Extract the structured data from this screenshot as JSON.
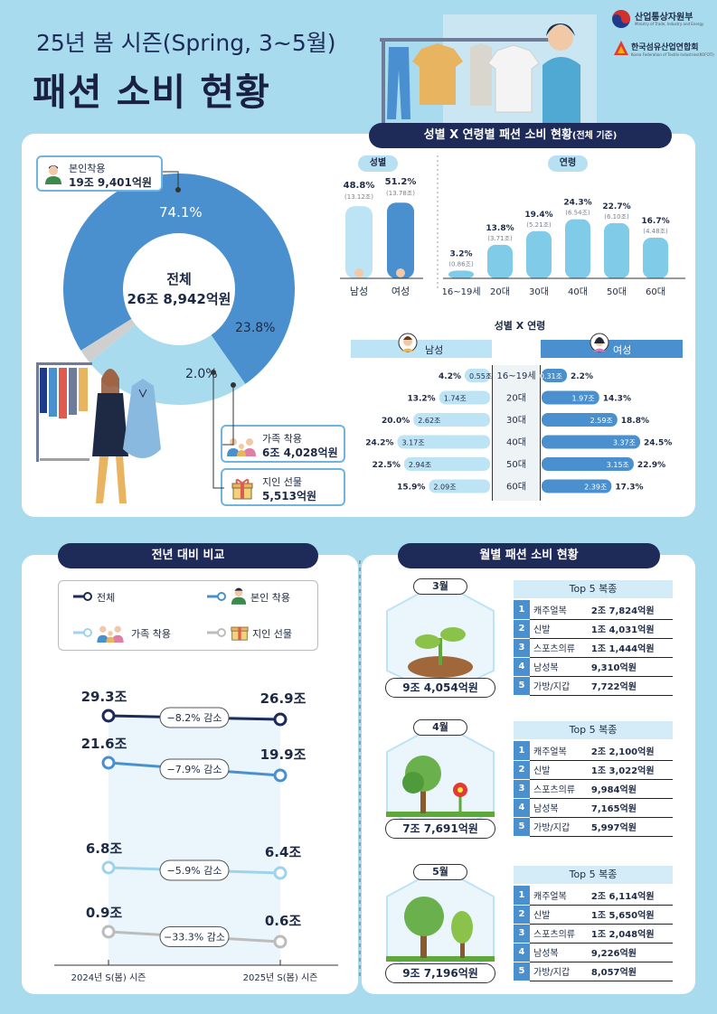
{
  "header": {
    "subtitle": "25년 봄 시즌(Spring, 3~5월)",
    "title": "패션 소비 현황",
    "logo1": "산업통상자원부",
    "logo1_en": "Ministry of Trade, Industry and Energy",
    "logo2": "한국섬유산업연합회",
    "logo2_en": "Korea Federation of Textile Industries(KOFOTI)"
  },
  "donut": {
    "center_label": "전체",
    "center_value": "26조 8,942억원",
    "self_label": "본인착용",
    "self_value": "19조 9,401억원",
    "family_label": "가족 착용",
    "family_value": "6조 4,028억원",
    "gift_label": "지인 선물",
    "gift_value": "5,513억원",
    "pct_self": "74.1%",
    "pct_family": "23.8%",
    "pct_gift": "2.0%"
  },
  "section_titles": {
    "gender_age": "성별 X 연령별 패션 소비 현황",
    "gender_age_note": "(전체 기준)",
    "gender": "성별",
    "age": "연령",
    "cross": "성별 X 연령",
    "male": "남성",
    "female": "여성",
    "yoy": "전년 대비 비교",
    "monthly": "월별 패션 소비 현황"
  },
  "gender_bars": [
    {
      "label": "남성",
      "pct": "48.8%",
      "amount": "(13.12조)",
      "value": 48.8
    },
    {
      "label": "여성",
      "pct": "51.2%",
      "amount": "(13.78조)",
      "value": 51.2
    }
  ],
  "age_bars": [
    {
      "label": "16~19세",
      "pct": "3.2%",
      "amount": "(0.86조)",
      "value": 3.2
    },
    {
      "label": "20대",
      "pct": "13.8%",
      "amount": "(3.71조)",
      "value": 13.8
    },
    {
      "label": "30대",
      "pct": "19.4%",
      "amount": "(5.21조)",
      "value": 19.4
    },
    {
      "label": "40대",
      "pct": "24.3%",
      "amount": "(6.54조)",
      "value": 24.3
    },
    {
      "label": "50대",
      "pct": "22.7%",
      "amount": "(6.10조)",
      "value": 22.7
    },
    {
      "label": "60대",
      "pct": "16.7%",
      "amount": "(4.48조)",
      "value": 16.7
    }
  ],
  "cross_rows": [
    {
      "age": "16~19세",
      "m_pct": "4.2%",
      "m_amt": "0.55조",
      "m_val": 0.55,
      "f_pct": "2.2%",
      "f_amt": "0.31조",
      "f_val": 0.31
    },
    {
      "age": "20대",
      "m_pct": "13.2%",
      "m_amt": "1.74조",
      "m_val": 1.74,
      "f_pct": "14.3%",
      "f_amt": "1.97조",
      "f_val": 1.97
    },
    {
      "age": "30대",
      "m_pct": "20.0%",
      "m_amt": "2.62조",
      "m_val": 2.62,
      "f_pct": "18.8%",
      "f_amt": "2.59조",
      "f_val": 2.59
    },
    {
      "age": "40대",
      "m_pct": "24.2%",
      "m_amt": "3.17조",
      "m_val": 3.17,
      "f_pct": "24.5%",
      "f_amt": "3.37조",
      "f_val": 3.37
    },
    {
      "age": "50대",
      "m_pct": "22.5%",
      "m_amt": "2.94조",
      "m_val": 2.94,
      "f_pct": "22.9%",
      "f_amt": "3.15조",
      "f_val": 3.15
    },
    {
      "age": "60대",
      "m_pct": "15.9%",
      "m_amt": "2.09조",
      "m_val": 2.09,
      "f_pct": "17.3%",
      "f_amt": "2.39조",
      "f_val": 2.39
    }
  ],
  "yoy": {
    "legend": [
      "전체",
      "본인 착용",
      "가족 착용",
      "지인 선물"
    ],
    "x_labels": [
      "2024년 S(봄) 시즌",
      "2025년 S(봄) 시즌"
    ],
    "series": [
      {
        "name": "전체",
        "v2024": 29.3,
        "v2025": 26.9,
        "l2024": "29.3조",
        "l2025": "26.9조",
        "change": "−8.2% 감소",
        "color": "#1e2a58"
      },
      {
        "name": "본인 착용",
        "v2024": 21.6,
        "v2025": 19.9,
        "l2024": "21.6조",
        "l2025": "19.9조",
        "change": "−7.9% 감소",
        "color": "#4a90cf"
      },
      {
        "name": "가족 착용",
        "v2024": 6.8,
        "v2025": 6.4,
        "l2024": "6.8조",
        "l2025": "6.4조",
        "change": "−5.9% 감소",
        "color": "#9fd3ec"
      },
      {
        "name": "지인 선물",
        "v2024": 0.9,
        "v2025": 0.6,
        "l2024": "0.9조",
        "l2025": "0.6조",
        "change": "−33.3% 감소",
        "color": "#bcbcbc"
      }
    ]
  },
  "months": [
    {
      "month": "3월",
      "total": "9조 4,054억원",
      "top_title": "Top 5 복종",
      "items": [
        [
          "1",
          "캐주얼복",
          "2조 7,824억원"
        ],
        [
          "2",
          "신발",
          "1조 4,031억원"
        ],
        [
          "3",
          "스포츠의류",
          "1조 1,444억원"
        ],
        [
          "4",
          "남성복",
          "9,310억원"
        ],
        [
          "5",
          "가방/지갑",
          "7,722억원"
        ]
      ]
    },
    {
      "month": "4월",
      "total": "7조 7,691억원",
      "top_title": "Top 5 복종",
      "items": [
        [
          "1",
          "캐주얼복",
          "2조 2,100억원"
        ],
        [
          "2",
          "신발",
          "1조 3,022억원"
        ],
        [
          "3",
          "스포츠의류",
          "9,984억원"
        ],
        [
          "4",
          "남성복",
          "7,165억원"
        ],
        [
          "5",
          "가방/지갑",
          "5,997억원"
        ]
      ]
    },
    {
      "month": "5월",
      "total": "9조 7,196억원",
      "top_title": "Top 5 복종",
      "items": [
        [
          "1",
          "캐주얼복",
          "2조 6,114억원"
        ],
        [
          "2",
          "신발",
          "1조 5,650억원"
        ],
        [
          "3",
          "스포츠의류",
          "1조 2,048억원"
        ],
        [
          "4",
          "남성복",
          "9,226억원"
        ],
        [
          "5",
          "가방/지갑",
          "8,057억원"
        ]
      ]
    }
  ],
  "chart_data": [
    {
      "type": "pie",
      "categories": [
        "본인착용",
        "가족 착용",
        "지인 선물"
      ],
      "values": [
        74.1,
        23.8,
        2.0
      ],
      "amounts": [
        "19조 9,401억원",
        "6조 4,028억원",
        "5,513억원"
      ],
      "total": "26조 8,942억원"
    },
    {
      "type": "bar",
      "title": "성별",
      "categories": [
        "남성",
        "여성"
      ],
      "values": [
        48.8,
        51.2
      ],
      "amounts_jo": [
        13.12,
        13.78
      ]
    },
    {
      "type": "bar",
      "title": "연령",
      "categories": [
        "16~19세",
        "20대",
        "30대",
        "40대",
        "50대",
        "60대"
      ],
      "values": [
        3.2,
        13.8,
        19.4,
        24.3,
        22.7,
        16.7
      ],
      "amounts_jo": [
        0.86,
        3.71,
        5.21,
        6.54,
        6.1,
        4.48
      ]
    },
    {
      "type": "bar",
      "title": "성별 X 연령",
      "categories": [
        "16~19세",
        "20대",
        "30대",
        "40대",
        "50대",
        "60대"
      ],
      "series": [
        {
          "name": "남성",
          "values": [
            0.55,
            1.74,
            2.62,
            3.17,
            2.94,
            2.09
          ],
          "pct": [
            4.2,
            13.2,
            20.0,
            24.2,
            22.5,
            15.9
          ]
        },
        {
          "name": "여성",
          "values": [
            0.31,
            1.97,
            2.59,
            3.37,
            3.15,
            2.39
          ],
          "pct": [
            2.2,
            14.3,
            18.8,
            24.5,
            22.9,
            17.3
          ]
        }
      ]
    },
    {
      "type": "line",
      "title": "전년 대비 비교",
      "x": [
        "2024년 S(봄) 시즌",
        "2025년 S(봄) 시즌"
      ],
      "series": [
        {
          "name": "전체",
          "values": [
            29.3,
            26.9
          ]
        },
        {
          "name": "본인 착용",
          "values": [
            21.6,
            19.9
          ]
        },
        {
          "name": "가족 착용",
          "values": [
            6.8,
            6.4
          ]
        },
        {
          "name": "지인 선물",
          "values": [
            0.9,
            0.6
          ]
        }
      ]
    },
    {
      "type": "table",
      "title": "월별 패션 소비 현황",
      "categories": [
        "3월",
        "4월",
        "5월"
      ],
      "totals": [
        "9조 4,054억원",
        "7조 7,691억원",
        "9조 7,196억원"
      ]
    }
  ]
}
